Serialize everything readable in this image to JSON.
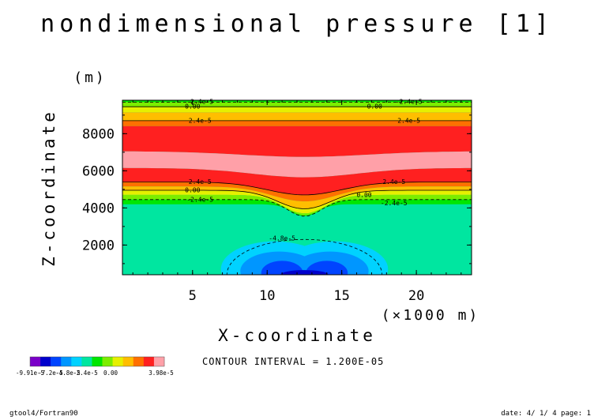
{
  "chart_data": {
    "type": "contour",
    "title": "nondimensional pressure [1]",
    "xlabel": "X-coordinate",
    "x_unit": "(×1000 m)",
    "ylabel": "Z-coordinate",
    "y_unit": "(m)",
    "xlim": [
      0.3,
      23.7
    ],
    "ylim": [
      400,
      9800
    ],
    "x_ticks": [
      5,
      10,
      15,
      20
    ],
    "y_ticks": [
      2000,
      4000,
      6000,
      8000
    ],
    "levels": [
      -9.91e-05,
      -8.4e-05,
      -7.2e-05,
      -6e-05,
      -4.8e-05,
      -3.6e-05,
      -2.4e-05,
      -1.2e-05,
      0,
      1.2e-05,
      2.4e-05,
      3.6e-05,
      3.98e-05
    ],
    "colors": [
      "#7a00c8",
      "#0000cc",
      "#0044ff",
      "#0096ff",
      "#00d2ff",
      "#00e6a0",
      "#00e600",
      "#7ced00",
      "#e6f000",
      "#ffbe00",
      "#ff7000",
      "#ff2020",
      "#ffa0a8"
    ],
    "colorbar_labels": [
      "-9.91e-5",
      "-7.2e-5",
      "-4.8e-5",
      "-2.4e-5",
      "0.00",
      "3.98e-5"
    ],
    "contour_labels": [
      "-2.4e-5",
      "0.00",
      "2.4e-5",
      "-4.8e-5"
    ],
    "contour_interval_text": "CONTOUR INTERVAL = 1.200E-05",
    "footer_left": "gtool4/Fortran90",
    "footer_right": "date: 4/ 1/ 4 page: 1"
  }
}
